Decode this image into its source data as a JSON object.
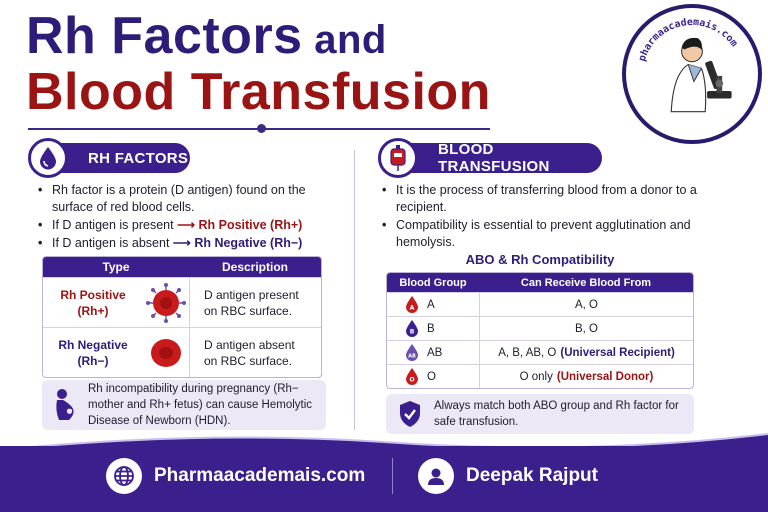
{
  "title": {
    "line1_main": "Rh Factors",
    "line1_small": " and",
    "line2": "Blood Transfusion"
  },
  "logo": {
    "text": "pharmaacademais.com"
  },
  "left": {
    "pill": "RH FACTORS",
    "bullets": {
      "b1": "Rh factor is a protein (D antigen) found on the surface of red blood cells.",
      "b2_text": "If D antigen is present ",
      "b2_arrow": "⟶",
      "b2_result": "Rh Positive (Rh+)",
      "b3_text": "If D antigen is absent ",
      "b3_arrow": "⟶",
      "b3_result": "Rh Negative (Rh−)"
    },
    "table": {
      "headers": [
        "Type",
        "Description"
      ],
      "rows": [
        {
          "type_line1": "Rh Positive",
          "type_line2": "(Rh+)",
          "desc_line1": "D antigen present",
          "desc_line2": "on RBC surface."
        },
        {
          "type_line1": "Rh Negative",
          "type_line2": "(Rh−)",
          "desc_line1": "D antigen absent",
          "desc_line2": "on RBC surface."
        }
      ]
    },
    "note": "Rh incompatibility during pregnancy (Rh− mother and Rh+ fetus) can cause Hemolytic Disease of Newborn (HDN)."
  },
  "right": {
    "pill": "BLOOD TRANSFUSION",
    "bullets": {
      "b1": "It is the process of transferring blood from a donor to a recipient.",
      "b2": "Compatibility is essential to prevent agglutination and hemolysis."
    },
    "abo_title": "ABO & Rh Compatibility",
    "table": {
      "headers": [
        "Blood Group",
        "Can Receive Blood From"
      ],
      "rows": [
        {
          "group": "A",
          "receive": "A, O",
          "tag": ""
        },
        {
          "group": "B",
          "receive": "B, O",
          "tag": ""
        },
        {
          "group": "AB",
          "receive": "A, B, AB, O",
          "tag": "(Universal Recipient)"
        },
        {
          "group": "O",
          "receive": "O only",
          "tag": "(Universal Donor)"
        }
      ]
    },
    "note": "Always match both ABO group and Rh factor for safe transfusion."
  },
  "footer": {
    "website": "Pharmaacademais.com",
    "author": "Deepak Rajput"
  },
  "colors": {
    "primary": "#3b1f8c",
    "accent": "#9a1414",
    "note_bg": "#ece8f6"
  }
}
